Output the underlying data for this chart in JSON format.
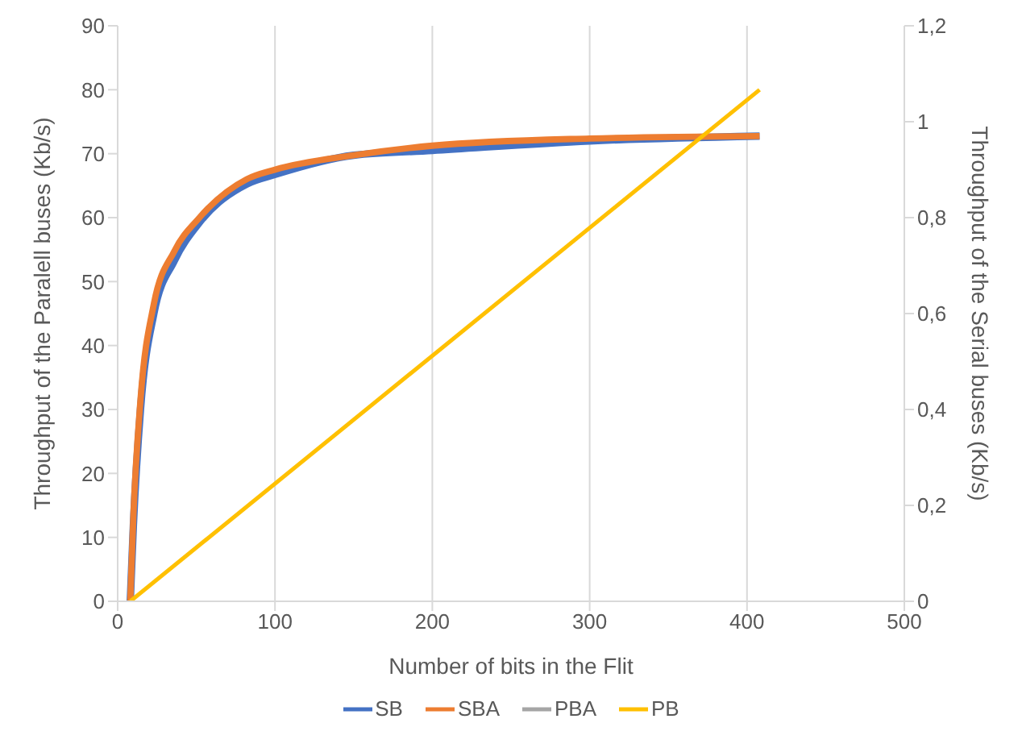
{
  "chart_data": {
    "type": "line",
    "xlabel": "Number of bits in the Flit",
    "ylabel": "Throughput of the Paralell buses (Kb/s)",
    "y2label": "Throughput of the Serial buses (Kb/s)",
    "xlim": [
      0,
      500
    ],
    "xticks": [
      0,
      100,
      200,
      300,
      400,
      500
    ],
    "ylim": [
      0,
      90
    ],
    "yticks": [
      0,
      10,
      20,
      30,
      40,
      50,
      60,
      70,
      80,
      90
    ],
    "y2lim": [
      0,
      1.2
    ],
    "y2ticks": [
      0,
      {
        "value": 0.2,
        "label": "0,2"
      },
      {
        "value": 0.4,
        "label": "0,4"
      },
      {
        "value": 0.6,
        "label": "0,6"
      },
      {
        "value": 0.8,
        "label": "0,8"
      },
      1,
      {
        "value": 1.2,
        "label": "1,2"
      }
    ],
    "grid": true,
    "legend": "bottom",
    "marker": "none",
    "line_style": "solid",
    "series": [
      {
        "name": "SB",
        "color": "#4472c4",
        "axis": "y2",
        "x": [
          8,
          10,
          14.5,
          23,
          36,
          52,
          82,
          100,
          150,
          200,
          300,
          408
        ],
        "values": [
          0,
          0.16,
          0.4,
          0.6,
          0.71,
          0.79,
          0.87,
          0.89,
          0.93,
          0.94,
          0.96,
          0.97
        ]
      },
      {
        "name": "SBA",
        "color": "#ed7d31",
        "axis": "y2",
        "x": [
          8,
          10,
          14.5,
          23,
          36,
          52,
          82,
          100,
          150,
          200,
          300,
          408
        ],
        "values": [
          0,
          0.18,
          0.42,
          0.62,
          0.73,
          0.8,
          0.88,
          0.9,
          0.93,
          0.95,
          0.965,
          0.97
        ]
      },
      {
        "name": "PBA",
        "color": "#a5a5a5"
      },
      {
        "name": "PB",
        "color": "#ffc000",
        "x": [
          8,
          408
        ],
        "values": [
          0,
          80
        ]
      }
    ]
  }
}
